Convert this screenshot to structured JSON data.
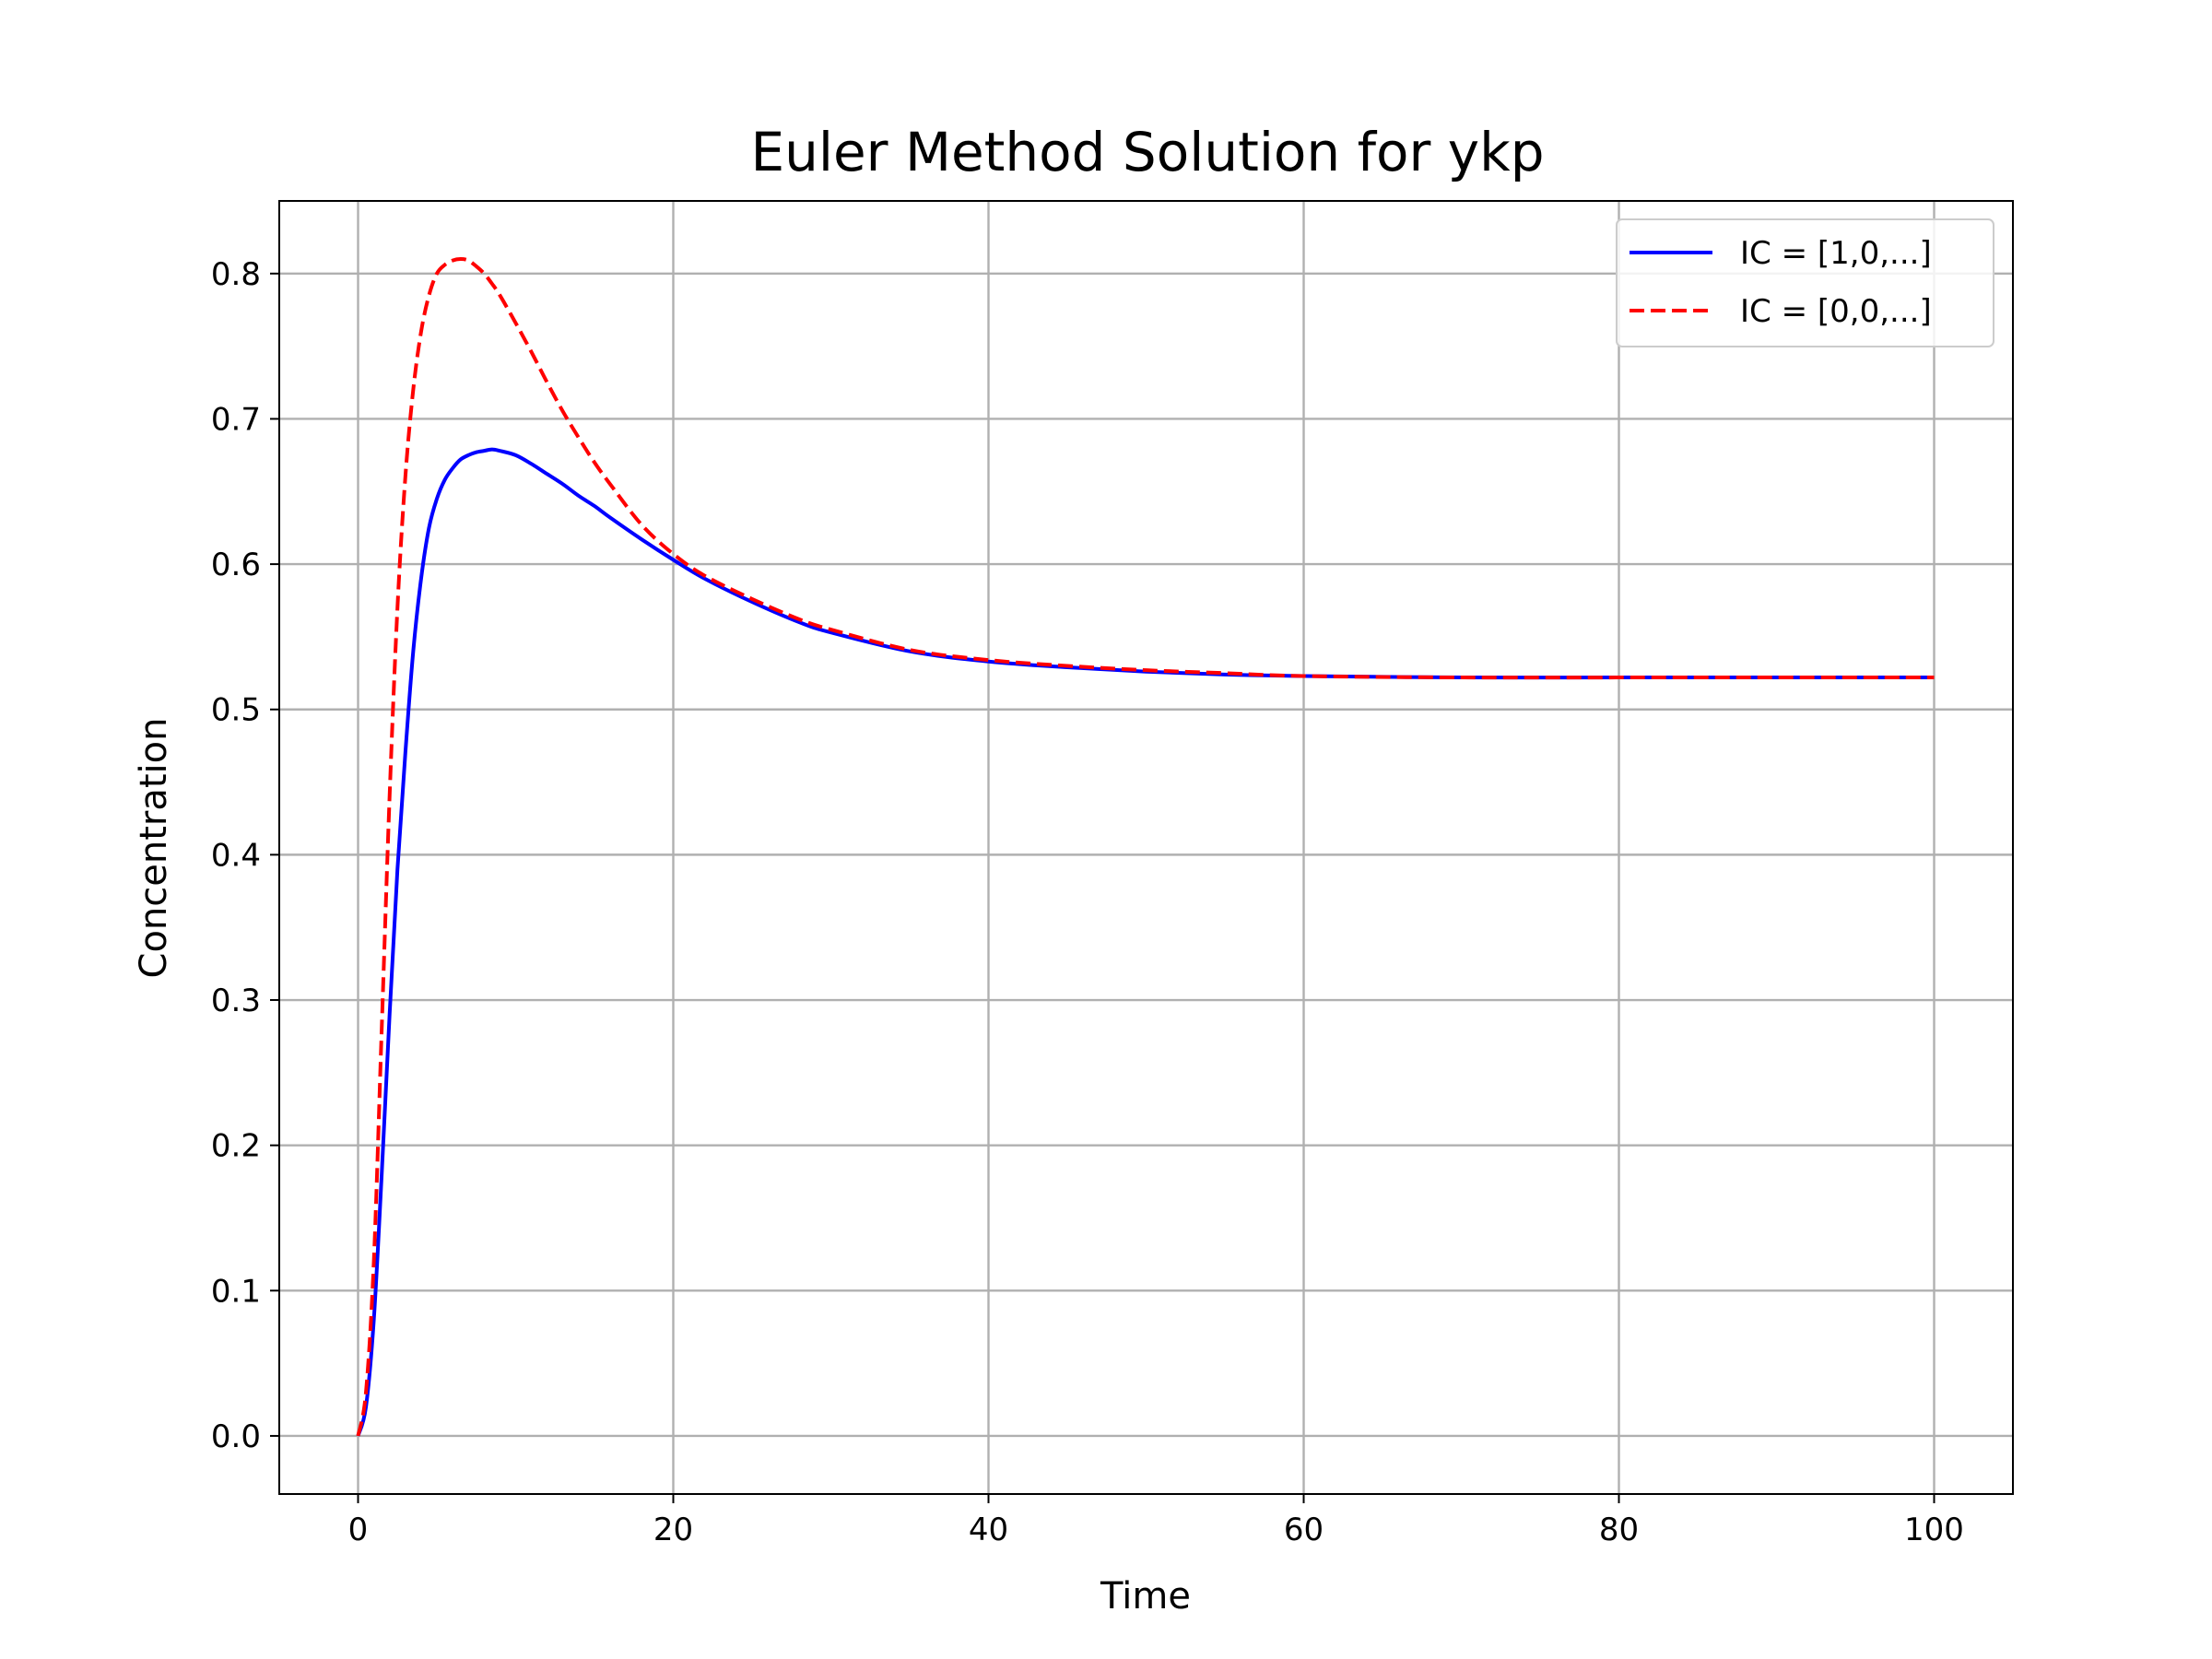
{
  "chart_data": {
    "type": "line",
    "title": "Euler Method Solution for ykp",
    "xlabel": "Time",
    "ylabel": "Concentration",
    "xlim": [
      -5,
      105
    ],
    "ylim": [
      -0.04,
      0.85
    ],
    "xticks": [
      0,
      20,
      40,
      60,
      80,
      100
    ],
    "xtick_labels": [
      "0",
      "20",
      "40",
      "60",
      "80",
      "100"
    ],
    "yticks": [
      0.0,
      0.1,
      0.2,
      0.3,
      0.4,
      0.5,
      0.6,
      0.7,
      0.8
    ],
    "ytick_labels": [
      "0.0",
      "0.1",
      "0.2",
      "0.3",
      "0.4",
      "0.5",
      "0.6",
      "0.7",
      "0.8"
    ],
    "grid": true,
    "legend_position": "top-right",
    "series": [
      {
        "name": "IC = [1,0,...]",
        "color": "#0000ff",
        "style": "solid",
        "x": [
          0,
          0.5,
          1,
          1.5,
          2,
          2.5,
          3,
          3.5,
          4,
          4.5,
          5,
          5.5,
          6,
          6.5,
          7,
          7.5,
          8,
          8.5,
          9,
          10,
          11,
          12,
          13,
          14,
          15,
          16,
          18,
          20,
          22,
          25,
          28,
          30,
          35,
          40,
          45,
          50,
          55,
          60,
          70,
          80,
          90,
          100
        ],
        "y": [
          0.0,
          0.02,
          0.08,
          0.18,
          0.29,
          0.39,
          0.47,
          0.54,
          0.59,
          0.625,
          0.645,
          0.658,
          0.666,
          0.672,
          0.675,
          0.677,
          0.678,
          0.679,
          0.678,
          0.675,
          0.669,
          0.662,
          0.655,
          0.647,
          0.64,
          0.632,
          0.617,
          0.603,
          0.59,
          0.574,
          0.56,
          0.553,
          0.54,
          0.533,
          0.529,
          0.526,
          0.524,
          0.523,
          0.522,
          0.522,
          0.522,
          0.522
        ]
      },
      {
        "name": "IC = [0,0,...]",
        "color": "#ff0000",
        "style": "dashed",
        "x": [
          0,
          0.5,
          1,
          1.5,
          2,
          2.5,
          3,
          3.5,
          4,
          4.5,
          5,
          5.5,
          6,
          6.5,
          7,
          7.5,
          8,
          8.5,
          9,
          10,
          11,
          12,
          13,
          14,
          15,
          16,
          18,
          20,
          22,
          25,
          28,
          30,
          35,
          40,
          45,
          50,
          55,
          60,
          70,
          80,
          90,
          100
        ],
        "y": [
          0.0,
          0.03,
          0.12,
          0.28,
          0.44,
          0.57,
          0.66,
          0.72,
          0.76,
          0.785,
          0.8,
          0.806,
          0.809,
          0.81,
          0.809,
          0.805,
          0.8,
          0.793,
          0.785,
          0.766,
          0.746,
          0.725,
          0.705,
          0.687,
          0.67,
          0.655,
          0.627,
          0.607,
          0.592,
          0.576,
          0.562,
          0.555,
          0.541,
          0.534,
          0.53,
          0.527,
          0.525,
          0.523,
          0.522,
          0.522,
          0.522,
          0.522
        ]
      }
    ]
  }
}
